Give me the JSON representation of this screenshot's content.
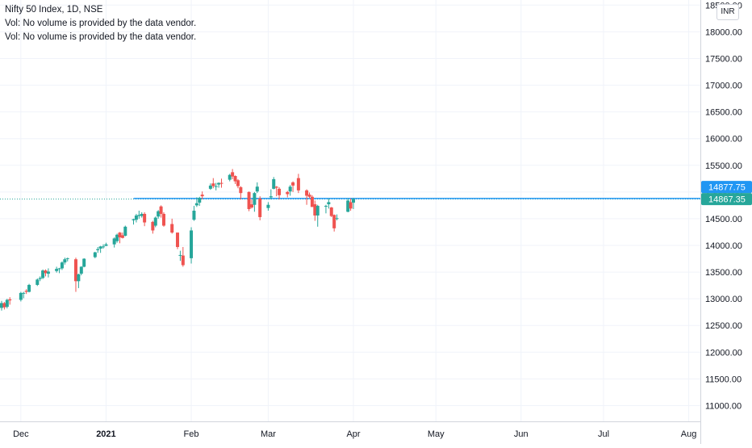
{
  "legend": {
    "title": "Nifty 50 Index, 1D, NSE",
    "vol_line_1": "Vol: No volume is provided by the data vendor.",
    "vol_line_2": "Vol: No volume is provided by the data vendor."
  },
  "currency": "INR",
  "colors": {
    "up": "#26a69a",
    "down": "#ef5350",
    "price_line": "#2196f3",
    "last_tag": "#26a69a",
    "line_tag": "#2196f3",
    "grid": "#f0f3fa",
    "axis_text": "#131722"
  },
  "chart_data": {
    "type": "candlestick",
    "title": "Nifty 50 Index, 1D, NSE",
    "y_axis": {
      "min": 10750,
      "max": 18550,
      "ticks": [
        11000,
        11500,
        12000,
        12500,
        13000,
        13500,
        14000,
        14500,
        15000,
        15500,
        16000,
        16500,
        17000,
        17500,
        18000,
        18500
      ],
      "tick_labels": [
        "11000.00",
        "11500.00",
        "12000.00",
        "12500.00",
        "13000.00",
        "13500.00",
        "14000.00",
        "14500.00",
        "15000.00",
        "15500.00",
        "16000.00",
        "16500.00",
        "17000.00",
        "17500.00",
        "18000.00",
        "18500.00"
      ]
    },
    "x_axis": {
      "start": "2020-11-24",
      "end": "2021-08-02",
      "ticks": [
        {
          "date": "2020-12-01",
          "label": "Dec"
        },
        {
          "date": "2021-01-01",
          "label": "2021"
        },
        {
          "date": "2021-02-01",
          "label": "Feb"
        },
        {
          "date": "2021-03-01",
          "label": "Mar"
        },
        {
          "date": "2021-04-01",
          "label": "Apr"
        },
        {
          "date": "2021-05-01",
          "label": "May"
        },
        {
          "date": "2021-06-01",
          "label": "Jun"
        },
        {
          "date": "2021-07-01",
          "label": "Jul"
        },
        {
          "date": "2021-08-01",
          "label": "Aug"
        }
      ]
    },
    "grid": true,
    "horizontal_line": {
      "value": 14877.75,
      "label": "14877.75",
      "start_date": "2021-01-11"
    },
    "last_price": {
      "value": 14867.35,
      "label": "14867.35"
    },
    "candles": [
      {
        "d": "2020-11-24",
        "o": 12830,
        "h": 12960,
        "l": 12780,
        "c": 12920
      },
      {
        "d": "2020-11-25",
        "o": 12920,
        "h": 12940,
        "l": 12800,
        "c": 12840
      },
      {
        "d": "2020-11-26",
        "o": 12850,
        "h": 13000,
        "l": 12820,
        "c": 12980
      },
      {
        "d": "2020-11-27",
        "o": 12990,
        "h": 13030,
        "l": 12890,
        "c": 12970
      },
      {
        "d": "2020-12-01",
        "o": 12980,
        "h": 13130,
        "l": 12950,
        "c": 13110
      },
      {
        "d": "2020-12-02",
        "o": 13100,
        "h": 13130,
        "l": 13010,
        "c": 13110
      },
      {
        "d": "2020-12-03",
        "o": 13150,
        "h": 13180,
        "l": 13090,
        "c": 13130
      },
      {
        "d": "2020-12-04",
        "o": 13130,
        "h": 13280,
        "l": 13120,
        "c": 13260
      },
      {
        "d": "2020-12-07",
        "o": 13260,
        "h": 13380,
        "l": 13240,
        "c": 13360
      },
      {
        "d": "2020-12-08",
        "o": 13370,
        "h": 13420,
        "l": 13330,
        "c": 13390
      },
      {
        "d": "2020-12-09",
        "o": 13390,
        "h": 13550,
        "l": 13370,
        "c": 13530
      },
      {
        "d": "2020-12-10",
        "o": 13530,
        "h": 13550,
        "l": 13420,
        "c": 13480
      },
      {
        "d": "2020-12-11",
        "o": 13470,
        "h": 13570,
        "l": 13400,
        "c": 13510
      },
      {
        "d": "2020-12-14",
        "o": 13520,
        "h": 13600,
        "l": 13490,
        "c": 13560
      },
      {
        "d": "2020-12-15",
        "o": 13560,
        "h": 13580,
        "l": 13480,
        "c": 13570
      },
      {
        "d": "2020-12-16",
        "o": 13570,
        "h": 13700,
        "l": 13540,
        "c": 13680
      },
      {
        "d": "2020-12-17",
        "o": 13680,
        "h": 13770,
        "l": 13640,
        "c": 13740
      },
      {
        "d": "2020-12-18",
        "o": 13750,
        "h": 13770,
        "l": 13700,
        "c": 13760
      },
      {
        "d": "2020-12-21",
        "o": 13740,
        "h": 13770,
        "l": 13130,
        "c": 13330
      },
      {
        "d": "2020-12-22",
        "o": 13330,
        "h": 13470,
        "l": 13200,
        "c": 13460
      },
      {
        "d": "2020-12-23",
        "o": 13470,
        "h": 13610,
        "l": 13440,
        "c": 13600
      },
      {
        "d": "2020-12-24",
        "o": 13600,
        "h": 13760,
        "l": 13590,
        "c": 13750
      },
      {
        "d": "2020-12-28",
        "o": 13780,
        "h": 13880,
        "l": 13760,
        "c": 13870
      },
      {
        "d": "2020-12-29",
        "o": 13910,
        "h": 13970,
        "l": 13860,
        "c": 13930
      },
      {
        "d": "2020-12-30",
        "o": 13940,
        "h": 13990,
        "l": 13860,
        "c": 13980
      },
      {
        "d": "2020-12-31",
        "o": 13980,
        "h": 14020,
        "l": 13940,
        "c": 13980
      },
      {
        "d": "2021-01-01",
        "o": 13990,
        "h": 14050,
        "l": 13990,
        "c": 14020
      },
      {
        "d": "2021-01-04",
        "o": 14020,
        "h": 14150,
        "l": 13960,
        "c": 14130
      },
      {
        "d": "2021-01-05",
        "o": 14080,
        "h": 14220,
        "l": 14050,
        "c": 14200
      },
      {
        "d": "2021-01-06",
        "o": 14240,
        "h": 14250,
        "l": 14040,
        "c": 14150
      },
      {
        "d": "2021-01-07",
        "o": 14190,
        "h": 14240,
        "l": 14130,
        "c": 14140
      },
      {
        "d": "2021-01-08",
        "o": 14180,
        "h": 14370,
        "l": 14170,
        "c": 14350
      },
      {
        "d": "2021-01-11",
        "o": 14470,
        "h": 14500,
        "l": 14390,
        "c": 14490
      },
      {
        "d": "2021-01-12",
        "o": 14480,
        "h": 14590,
        "l": 14430,
        "c": 14560
      },
      {
        "d": "2021-01-13",
        "o": 14550,
        "h": 14650,
        "l": 14500,
        "c": 14570
      },
      {
        "d": "2021-01-14",
        "o": 14550,
        "h": 14620,
        "l": 14520,
        "c": 14590
      },
      {
        "d": "2021-01-15",
        "o": 14590,
        "h": 14620,
        "l": 14360,
        "c": 14430
      },
      {
        "d": "2021-01-18",
        "o": 14440,
        "h": 14460,
        "l": 14220,
        "c": 14280
      },
      {
        "d": "2021-01-19",
        "o": 14370,
        "h": 14540,
        "l": 14340,
        "c": 14520
      },
      {
        "d": "2021-01-20",
        "o": 14540,
        "h": 14660,
        "l": 14500,
        "c": 14640
      },
      {
        "d": "2021-01-21",
        "o": 14730,
        "h": 14750,
        "l": 14520,
        "c": 14590
      },
      {
        "d": "2021-01-22",
        "o": 14590,
        "h": 14620,
        "l": 14350,
        "c": 14370
      },
      {
        "d": "2021-01-25",
        "o": 14400,
        "h": 14500,
        "l": 14220,
        "c": 14240
      },
      {
        "d": "2021-01-27",
        "o": 14240,
        "h": 14240,
        "l": 13930,
        "c": 13970
      },
      {
        "d": "2021-01-28",
        "o": 13810,
        "h": 13900,
        "l": 13710,
        "c": 13820
      },
      {
        "d": "2021-01-29",
        "o": 13810,
        "h": 13970,
        "l": 13600,
        "c": 13630
      },
      {
        "d": "2021-02-01",
        "o": 13760,
        "h": 14340,
        "l": 13660,
        "c": 14280
      },
      {
        "d": "2021-02-02",
        "o": 14480,
        "h": 14740,
        "l": 14460,
        "c": 14650
      },
      {
        "d": "2021-02-03",
        "o": 14750,
        "h": 14900,
        "l": 14720,
        "c": 14790
      },
      {
        "d": "2021-02-04",
        "o": 14800,
        "h": 14910,
        "l": 14740,
        "c": 14890
      },
      {
        "d": "2021-02-05",
        "o": 14950,
        "h": 15010,
        "l": 14860,
        "c": 14920
      },
      {
        "d": "2021-02-08",
        "o": 15060,
        "h": 15160,
        "l": 15040,
        "c": 15120
      },
      {
        "d": "2021-02-09",
        "o": 15160,
        "h": 15260,
        "l": 15070,
        "c": 15110
      },
      {
        "d": "2021-02-10",
        "o": 15100,
        "h": 15170,
        "l": 15030,
        "c": 15110
      },
      {
        "d": "2021-02-11",
        "o": 15140,
        "h": 15180,
        "l": 15080,
        "c": 15170
      },
      {
        "d": "2021-02-12",
        "o": 15170,
        "h": 15250,
        "l": 15080,
        "c": 15160
      },
      {
        "d": "2021-02-15",
        "o": 15230,
        "h": 15340,
        "l": 15200,
        "c": 15320
      },
      {
        "d": "2021-02-16",
        "o": 15370,
        "h": 15430,
        "l": 15240,
        "c": 15290
      },
      {
        "d": "2021-02-17",
        "o": 15300,
        "h": 15310,
        "l": 15150,
        "c": 15200
      },
      {
        "d": "2021-02-18",
        "o": 15220,
        "h": 15240,
        "l": 15070,
        "c": 15110
      },
      {
        "d": "2021-02-19",
        "o": 15090,
        "h": 15110,
        "l": 14860,
        "c": 14980
      },
      {
        "d": "2021-02-22",
        "o": 15000,
        "h": 15010,
        "l": 14640,
        "c": 14680
      },
      {
        "d": "2021-02-23",
        "o": 14770,
        "h": 14860,
        "l": 14690,
        "c": 14710
      },
      {
        "d": "2021-02-24",
        "o": 14760,
        "h": 15000,
        "l": 14630,
        "c": 14980
      },
      {
        "d": "2021-02-25",
        "o": 15010,
        "h": 15180,
        "l": 14980,
        "c": 15100
      },
      {
        "d": "2021-02-26",
        "o": 14880,
        "h": 14920,
        "l": 14470,
        "c": 14530
      },
      {
        "d": "2021-03-01",
        "o": 14700,
        "h": 14810,
        "l": 14650,
        "c": 14760
      },
      {
        "d": "2021-03-02",
        "o": 14900,
        "h": 15050,
        "l": 14860,
        "c": 14920
      },
      {
        "d": "2021-03-03",
        "o": 15060,
        "h": 15280,
        "l": 15050,
        "c": 15240
      },
      {
        "d": "2021-03-04",
        "o": 15100,
        "h": 15110,
        "l": 14920,
        "c": 15080
      },
      {
        "d": "2021-03-05",
        "o": 15060,
        "h": 15090,
        "l": 14860,
        "c": 14940
      },
      {
        "d": "2021-03-08",
        "o": 15000,
        "h": 15020,
        "l": 14900,
        "c": 14960
      },
      {
        "d": "2021-03-09",
        "o": 15010,
        "h": 15130,
        "l": 14930,
        "c": 15100
      },
      {
        "d": "2021-03-10",
        "o": 15180,
        "h": 15200,
        "l": 15000,
        "c": 15120
      },
      {
        "d": "2021-03-12",
        "o": 15260,
        "h": 15340,
        "l": 14980,
        "c": 15030
      },
      {
        "d": "2021-03-15",
        "o": 15030,
        "h": 15050,
        "l": 14760,
        "c": 14930
      },
      {
        "d": "2021-03-16",
        "o": 14950,
        "h": 14990,
        "l": 14880,
        "c": 14910
      },
      {
        "d": "2021-03-17",
        "o": 14910,
        "h": 14940,
        "l": 14720,
        "c": 14720
      },
      {
        "d": "2021-03-18",
        "o": 14770,
        "h": 14840,
        "l": 14460,
        "c": 14560
      },
      {
        "d": "2021-03-19",
        "o": 14560,
        "h": 14760,
        "l": 14350,
        "c": 14740
      },
      {
        "d": "2021-03-22",
        "o": 14740,
        "h": 14760,
        "l": 14600,
        "c": 14740
      },
      {
        "d": "2021-03-23",
        "o": 14770,
        "h": 14880,
        "l": 14690,
        "c": 14810
      },
      {
        "d": "2021-03-24",
        "o": 14710,
        "h": 14720,
        "l": 14530,
        "c": 14550
      },
      {
        "d": "2021-03-25",
        "o": 14570,
        "h": 14580,
        "l": 14260,
        "c": 14320
      },
      {
        "d": "2021-03-26",
        "o": 14510,
        "h": 14580,
        "l": 14470,
        "c": 14510
      },
      {
        "d": "2021-03-30",
        "o": 14630,
        "h": 14880,
        "l": 14620,
        "c": 14840
      },
      {
        "d": "2021-03-31",
        "o": 14810,
        "h": 14880,
        "l": 14650,
        "c": 14690
      },
      {
        "d": "2021-04-01",
        "o": 14800,
        "h": 14890,
        "l": 14680,
        "c": 14867.35
      }
    ]
  }
}
